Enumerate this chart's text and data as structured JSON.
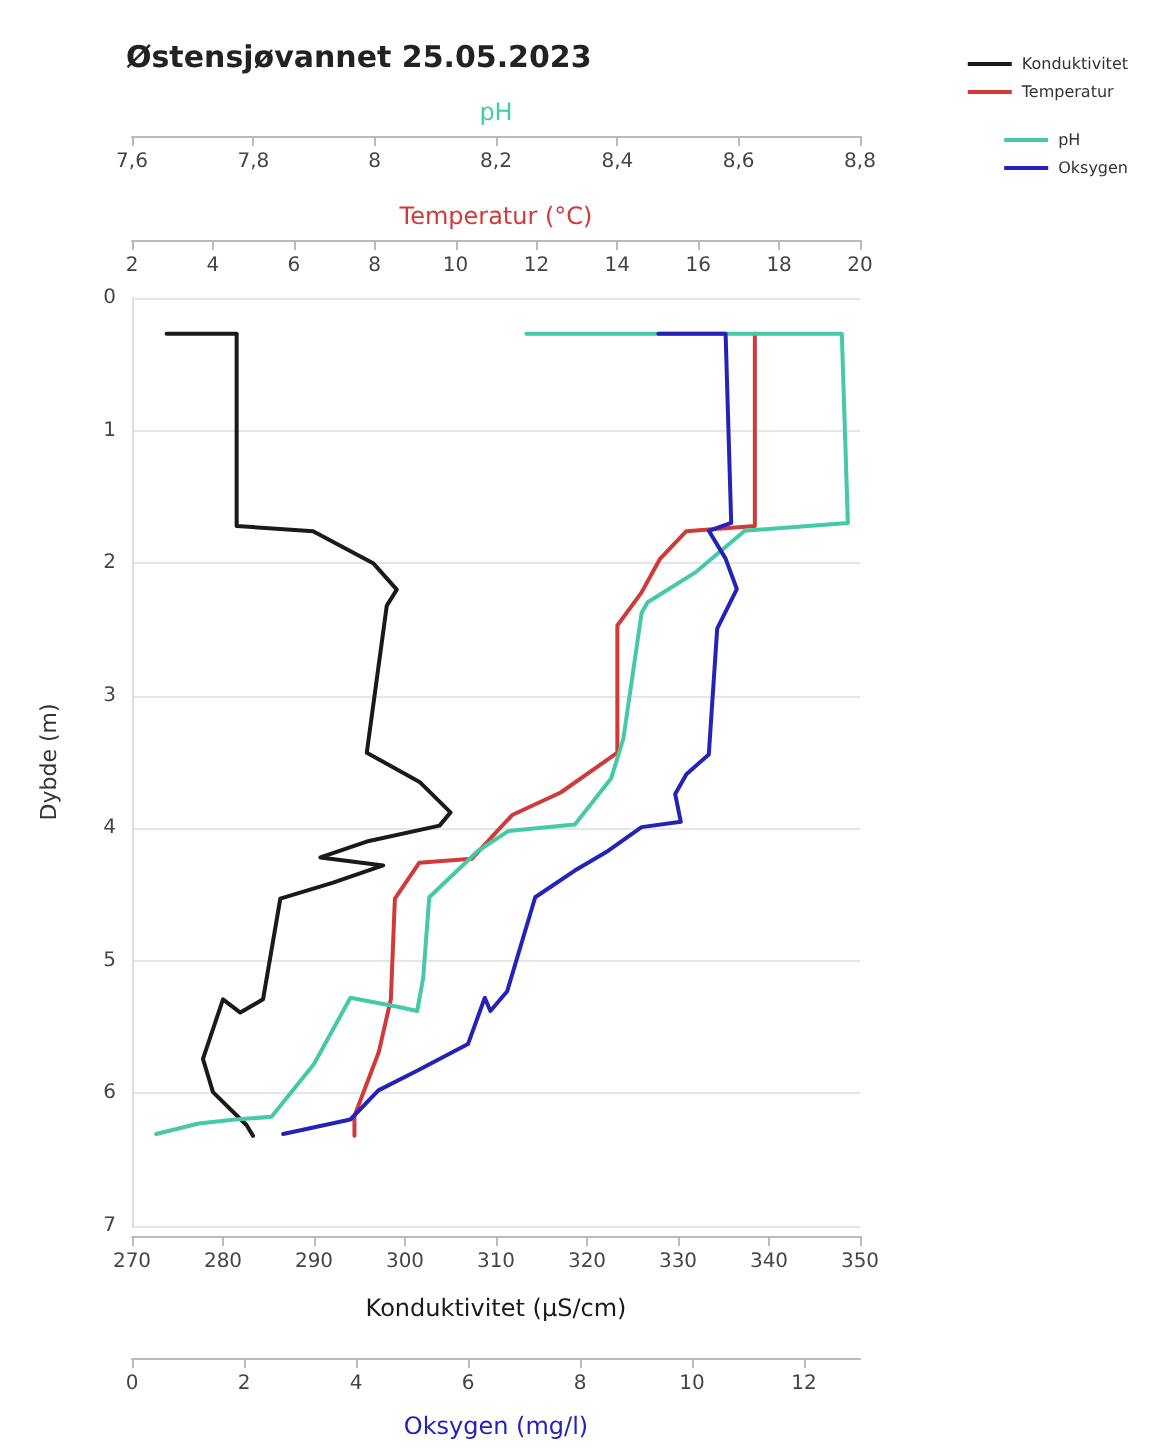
{
  "chart_data": [
    {
      "type": "line",
      "title": "Østensjøvannet 25.05.2023",
      "ylabel": "Dybde (m)",
      "xlabel": "Konduktivitet (µS/cm)",
      "x2label": "Temperatur (°C)",
      "ylim": [
        7,
        0
      ],
      "yticks": [
        0,
        1,
        2,
        3,
        4,
        5,
        6,
        7
      ],
      "xlim": [
        270,
        350
      ],
      "xticks": [
        270,
        280,
        290,
        300,
        310,
        320,
        330,
        340,
        350
      ],
      "x2lim": [
        2,
        20
      ],
      "x2ticks": [
        2,
        4,
        6,
        8,
        10,
        12,
        14,
        16,
        18,
        20
      ],
      "grid": "y",
      "legend": "top right",
      "marker": "none",
      "line_style": "solid",
      "series": [
        {
          "name": "Konduktivitet",
          "color": "#1a1a1a",
          "x": [
            273.8,
            281.5,
            281.5,
            289.9,
            296.5,
            299.1,
            298,
            295.8,
            301.6,
            305,
            303.8,
            295.8,
            290.7,
            297.6,
            292.1,
            286.3,
            284.4,
            281.9,
            280,
            277.8,
            278.9,
            282.6,
            283.3
          ],
          "values": [
            0.27,
            0.27,
            1.72,
            1.76,
            2.0,
            2.2,
            2.32,
            3.43,
            3.65,
            3.88,
            3.98,
            4.1,
            4.22,
            4.28,
            4.41,
            4.53,
            5.29,
            5.39,
            5.29,
            5.74,
            5.99,
            6.24,
            6.32
          ]
        },
        {
          "name": "Temperatur",
          "color": "#d03a3a",
          "axis": "x2",
          "x": [
            17.4,
            17.4,
            15.7,
            15.05,
            14.6,
            14.0,
            14.0,
            12.6,
            11.4,
            11.0,
            10.4,
            9.1,
            8.5,
            8.4,
            8.1,
            7.5,
            7.5
          ],
          "values": [
            0.27,
            1.72,
            1.76,
            1.97,
            2.22,
            2.47,
            3.43,
            3.73,
            3.9,
            4.03,
            4.23,
            4.26,
            4.53,
            5.29,
            5.69,
            6.17,
            6.32
          ]
        }
      ]
    },
    {
      "type": "line",
      "xlabel": "Oksygen (mg/l)",
      "x2label": "pH",
      "ylim": [
        7,
        0
      ],
      "tick_labels": "x",
      "xlim": [
        0,
        13
      ],
      "xticks": [
        0,
        2,
        4,
        6,
        8,
        10,
        12
      ],
      "x2lim": [
        7.6,
        8.8
      ],
      "x2ticks": [
        {
          "value": 7.6,
          "label": "7,6"
        },
        {
          "value": 7.8,
          "label": "7,8"
        },
        {
          "value": 8,
          "label": "8"
        },
        {
          "value": 8.2,
          "label": "8,2"
        },
        {
          "value": 8.4,
          "label": "8,4"
        },
        {
          "value": 8.6,
          "label": "8,6"
        },
        {
          "value": 8.8,
          "label": "8,8"
        }
      ],
      "legend": "top right",
      "marker": "none",
      "line_style": "solid",
      "series": [
        {
          "name": "pH",
          "color": "#45c9a6",
          "axis": "x2",
          "x": [
            8.25,
            8.77,
            8.78,
            8.61,
            8.53,
            8.45,
            8.44,
            8.41,
            8.39,
            8.33,
            8.22,
            8.17,
            8.09,
            8.08,
            8.07,
            8.04,
            7.96,
            7.9,
            7.83,
            7.77,
            7.71,
            7.64
          ],
          "values": [
            0.27,
            0.27,
            1.7,
            1.76,
            2.07,
            2.3,
            2.38,
            3.33,
            3.63,
            3.98,
            4.03,
            4.18,
            4.53,
            5.14,
            5.39,
            5.36,
            5.29,
            5.79,
            6.19,
            6.21,
            6.24,
            6.32
          ]
        },
        {
          "name": "Oksygen",
          "color": "#2323b8",
          "x": [
            9.4,
            10.6,
            10.7,
            10.3,
            10.6,
            10.8,
            10.45,
            10.3,
            9.9,
            9.7,
            9.8,
            9.1,
            8.5,
            7.9,
            7.2,
            6.7,
            6.4,
            6.3,
            6.0,
            5.1,
            4.4,
            3.9,
            2.7
          ],
          "values": [
            0.27,
            0.27,
            1.7,
            1.76,
            1.97,
            2.2,
            2.5,
            3.45,
            3.6,
            3.75,
            3.96,
            4.0,
            4.18,
            4.33,
            4.53,
            5.24,
            5.39,
            5.29,
            5.64,
            5.84,
            5.99,
            6.21,
            6.32
          ]
        }
      ]
    }
  ]
}
